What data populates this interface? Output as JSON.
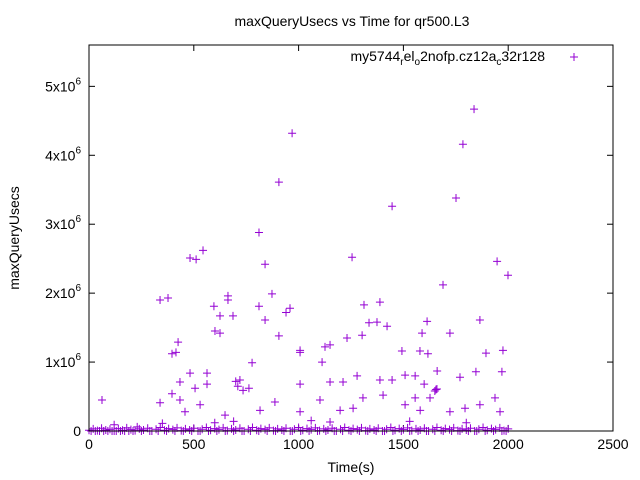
{
  "chart_data": {
    "type": "scatter",
    "title": "maxQueryUsecs vs Time for qr500.L3",
    "xlabel": "Time(s)",
    "ylabel": "maxQueryUsecs",
    "xlim": [
      0,
      2500
    ],
    "ylim": [
      0,
      5600000
    ],
    "grid": false,
    "legend_position": "top-right",
    "x_ticks": [
      {
        "value": 0,
        "label": "0"
      },
      {
        "value": 500,
        "label": "500"
      },
      {
        "value": 1000,
        "label": "1000"
      },
      {
        "value": 1500,
        "label": "1500"
      },
      {
        "value": 2000,
        "label": "2000"
      },
      {
        "value": 2500,
        "label": "2500"
      }
    ],
    "y_ticks": [
      {
        "value": 0,
        "label": "0",
        "mantissa": "0",
        "exp": ""
      },
      {
        "value": 1000000,
        "label": "1x10^6",
        "mantissa": "1x10",
        "exp": "6"
      },
      {
        "value": 2000000,
        "label": "2x10^6",
        "mantissa": "2x10",
        "exp": "6"
      },
      {
        "value": 3000000,
        "label": "3x10^6",
        "mantissa": "3x10",
        "exp": "6"
      },
      {
        "value": 4000000,
        "label": "4x10^6",
        "mantissa": "4x10",
        "exp": "6"
      },
      {
        "value": 5000000,
        "label": "5x10^6",
        "mantissa": "5x10",
        "exp": "6"
      }
    ],
    "series": [
      {
        "name": "my5744_rel_o2nofp.cz12a_c32r128",
        "legend_parts": [
          {
            "text": "my5744",
            "sub": false
          },
          {
            "text": "r",
            "sub": true
          },
          {
            "text": "el",
            "sub": false
          },
          {
            "text": "o",
            "sub": true
          },
          {
            "text": "2nofp.cz12a",
            "sub": false
          },
          {
            "text": "c",
            "sub": true
          },
          {
            "text": "32r128",
            "sub": false
          }
        ],
        "color": "#9400d3",
        "marker": "plus",
        "points": [
          [
            62,
            450000
          ],
          [
            969,
            4320000
          ],
          [
            906,
            3610000
          ],
          [
            811,
            2880000
          ],
          [
            840,
            2420000
          ],
          [
            873,
            1990000
          ],
          [
            544,
            2620000
          ],
          [
            482,
            2510000
          ],
          [
            511,
            2490000
          ],
          [
            339,
            1900000
          ],
          [
            377,
            1930000
          ],
          [
            596,
            1810000
          ],
          [
            625,
            1670000
          ],
          [
            663,
            1960000
          ],
          [
            663,
            1900000
          ],
          [
            687,
            1670000
          ],
          [
            425,
            1290000
          ],
          [
            415,
            1140000
          ],
          [
            396,
            1120000
          ],
          [
            601,
            1450000
          ],
          [
            625,
            1420000
          ],
          [
            811,
            1810000
          ],
          [
            840,
            1610000
          ],
          [
            940,
            1720000
          ],
          [
            959,
            1780000
          ],
          [
            1007,
            1170000
          ],
          [
            1007,
            1140000
          ],
          [
            906,
            1380000
          ],
          [
            778,
            990000
          ],
          [
            1150,
            1250000
          ],
          [
            1126,
            1220000
          ],
          [
            1231,
            1350000
          ],
          [
            1255,
            2520000
          ],
          [
            1312,
            1830000
          ],
          [
            1336,
            1570000
          ],
          [
            1388,
            1870000
          ],
          [
            1374,
            1580000
          ],
          [
            1422,
            1520000
          ],
          [
            1446,
            3260000
          ],
          [
            1493,
            1160000
          ],
          [
            1579,
            1160000
          ],
          [
            1589,
            1420000
          ],
          [
            1613,
            1590000
          ],
          [
            1617,
            1120000
          ],
          [
            1689,
            2120000
          ],
          [
            1722,
            1420000
          ],
          [
            1751,
            3380000
          ],
          [
            1784,
            4160000
          ],
          [
            1837,
            4670000
          ],
          [
            1865,
            1610000
          ],
          [
            1894,
            1130000
          ],
          [
            1947,
            2460000
          ],
          [
            1975,
            1170000
          ],
          [
            1999,
            2260000
          ],
          [
            1303,
            1390000
          ],
          [
            339,
            410000
          ],
          [
            396,
            540000
          ],
          [
            434,
            710000
          ],
          [
            482,
            840000
          ],
          [
            506,
            620000
          ],
          [
            563,
            840000
          ],
          [
            563,
            680000
          ],
          [
            720,
            740000
          ],
          [
            735,
            590000
          ],
          [
            763,
            620000
          ],
          [
            1007,
            680000
          ],
          [
            1112,
            1000000
          ],
          [
            1150,
            710000
          ],
          [
            1212,
            710000
          ],
          [
            1279,
            800000
          ],
          [
            1388,
            740000
          ],
          [
            1446,
            740000
          ],
          [
            1508,
            810000
          ],
          [
            1556,
            800000
          ],
          [
            1599,
            680000
          ],
          [
            1661,
            870000
          ],
          [
            1770,
            780000
          ],
          [
            1846,
            860000
          ],
          [
            1970,
            860000
          ],
          [
            434,
            450000
          ],
          [
            458,
            280000
          ],
          [
            530,
            380000
          ],
          [
            649,
            230000
          ],
          [
            816,
            300000
          ],
          [
            887,
            420000
          ],
          [
            1007,
            280000
          ],
          [
            1102,
            450000
          ],
          [
            1198,
            300000
          ],
          [
            1260,
            330000
          ],
          [
            1307,
            480000
          ],
          [
            1403,
            520000
          ],
          [
            1508,
            380000
          ],
          [
            1556,
            480000
          ],
          [
            1580,
            300000
          ],
          [
            1627,
            480000
          ],
          [
            1722,
            280000
          ],
          [
            1794,
            330000
          ],
          [
            1865,
            380000
          ],
          [
            1937,
            480000
          ],
          [
            1961,
            280000
          ],
          [
            700,
            720000
          ],
          [
            710,
            650000
          ],
          [
            1650,
            580000
          ],
          [
            1655,
            600000
          ],
          [
            1660,
            610000
          ],
          [
            120,
            90000
          ],
          [
            230,
            60000
          ],
          [
            350,
            110000
          ],
          [
            600,
            120000
          ],
          [
            690,
            140000
          ],
          [
            1060,
            150000
          ],
          [
            1150,
            130000
          ],
          [
            1530,
            140000
          ],
          [
            1800,
            120000
          ],
          [
            0,
            10000
          ],
          [
            20,
            30000
          ],
          [
            40,
            5000
          ],
          [
            60,
            40000
          ],
          [
            80,
            15000
          ],
          [
            100,
            25000
          ],
          [
            120,
            0
          ],
          [
            140,
            35000
          ],
          [
            160,
            10000
          ],
          [
            180,
            45000
          ],
          [
            200,
            20000
          ],
          [
            220,
            5000
          ],
          [
            240,
            30000
          ],
          [
            260,
            15000
          ],
          [
            280,
            40000
          ],
          [
            300,
            0
          ],
          [
            320,
            25000
          ],
          [
            340,
            50000
          ],
          [
            360,
            10000
          ],
          [
            380,
            35000
          ],
          [
            400,
            20000
          ],
          [
            420,
            45000
          ],
          [
            440,
            5000
          ],
          [
            460,
            30000
          ],
          [
            480,
            15000
          ],
          [
            500,
            40000
          ],
          [
            520,
            0
          ],
          [
            540,
            25000
          ],
          [
            560,
            50000
          ],
          [
            580,
            10000
          ],
          [
            600,
            35000
          ],
          [
            620,
            20000
          ],
          [
            640,
            45000
          ],
          [
            660,
            5000
          ],
          [
            680,
            30000
          ],
          [
            700,
            15000
          ],
          [
            720,
            40000
          ],
          [
            740,
            0
          ],
          [
            760,
            25000
          ],
          [
            780,
            50000
          ],
          [
            800,
            10000
          ],
          [
            820,
            35000
          ],
          [
            840,
            20000
          ],
          [
            860,
            45000
          ],
          [
            880,
            5000
          ],
          [
            900,
            30000
          ],
          [
            920,
            15000
          ],
          [
            940,
            40000
          ],
          [
            960,
            0
          ],
          [
            980,
            25000
          ],
          [
            1000,
            50000
          ],
          [
            1020,
            10000
          ],
          [
            1040,
            35000
          ],
          [
            1060,
            20000
          ],
          [
            1080,
            45000
          ],
          [
            1100,
            5000
          ],
          [
            1120,
            30000
          ],
          [
            1140,
            15000
          ],
          [
            1160,
            40000
          ],
          [
            1180,
            0
          ],
          [
            1200,
            25000
          ],
          [
            1220,
            50000
          ],
          [
            1240,
            10000
          ],
          [
            1260,
            35000
          ],
          [
            1280,
            20000
          ],
          [
            1300,
            45000
          ],
          [
            1320,
            5000
          ],
          [
            1340,
            30000
          ],
          [
            1360,
            15000
          ],
          [
            1380,
            40000
          ],
          [
            1400,
            0
          ],
          [
            1420,
            25000
          ],
          [
            1440,
            50000
          ],
          [
            1460,
            10000
          ],
          [
            1480,
            35000
          ],
          [
            1500,
            20000
          ],
          [
            1520,
            45000
          ],
          [
            1540,
            5000
          ],
          [
            1560,
            30000
          ],
          [
            1580,
            15000
          ],
          [
            1600,
            40000
          ],
          [
            1620,
            0
          ],
          [
            1640,
            25000
          ],
          [
            1660,
            50000
          ],
          [
            1680,
            10000
          ],
          [
            1700,
            35000
          ],
          [
            1720,
            20000
          ],
          [
            1740,
            45000
          ],
          [
            1760,
            5000
          ],
          [
            1780,
            30000
          ],
          [
            1800,
            15000
          ],
          [
            1820,
            40000
          ],
          [
            1840,
            0
          ],
          [
            1860,
            25000
          ],
          [
            1880,
            50000
          ],
          [
            1900,
            10000
          ],
          [
            1920,
            35000
          ],
          [
            1940,
            20000
          ],
          [
            1960,
            45000
          ],
          [
            1980,
            5000
          ],
          [
            2000,
            30000
          ],
          [
            10,
            0
          ],
          [
            30,
            0
          ],
          [
            50,
            0
          ],
          [
            70,
            0
          ],
          [
            90,
            0
          ],
          [
            110,
            0
          ],
          [
            130,
            0
          ],
          [
            150,
            0
          ],
          [
            170,
            0
          ],
          [
            190,
            0
          ],
          [
            210,
            0
          ],
          [
            250,
            0
          ],
          [
            290,
            0
          ],
          [
            330,
            0
          ],
          [
            370,
            0
          ],
          [
            410,
            0
          ],
          [
            450,
            0
          ],
          [
            490,
            0
          ],
          [
            530,
            0
          ],
          [
            570,
            0
          ],
          [
            610,
            0
          ],
          [
            650,
            0
          ],
          [
            690,
            0
          ],
          [
            730,
            0
          ],
          [
            770,
            0
          ],
          [
            810,
            0
          ],
          [
            850,
            0
          ],
          [
            890,
            0
          ],
          [
            930,
            0
          ],
          [
            970,
            0
          ],
          [
            1010,
            0
          ],
          [
            1050,
            0
          ],
          [
            1090,
            0
          ],
          [
            1130,
            0
          ],
          [
            1170,
            0
          ],
          [
            1210,
            0
          ],
          [
            1250,
            0
          ],
          [
            1290,
            0
          ],
          [
            1330,
            0
          ],
          [
            1370,
            0
          ],
          [
            1410,
            0
          ],
          [
            1450,
            0
          ],
          [
            1490,
            0
          ],
          [
            1530,
            0
          ],
          [
            1570,
            0
          ],
          [
            1610,
            0
          ],
          [
            1650,
            0
          ],
          [
            1690,
            0
          ],
          [
            1730,
            0
          ],
          [
            1770,
            0
          ],
          [
            1810,
            0
          ],
          [
            1850,
            0
          ],
          [
            1890,
            0
          ],
          [
            1930,
            0
          ],
          [
            1970,
            0
          ],
          [
            1990,
            0
          ]
        ]
      }
    ]
  }
}
